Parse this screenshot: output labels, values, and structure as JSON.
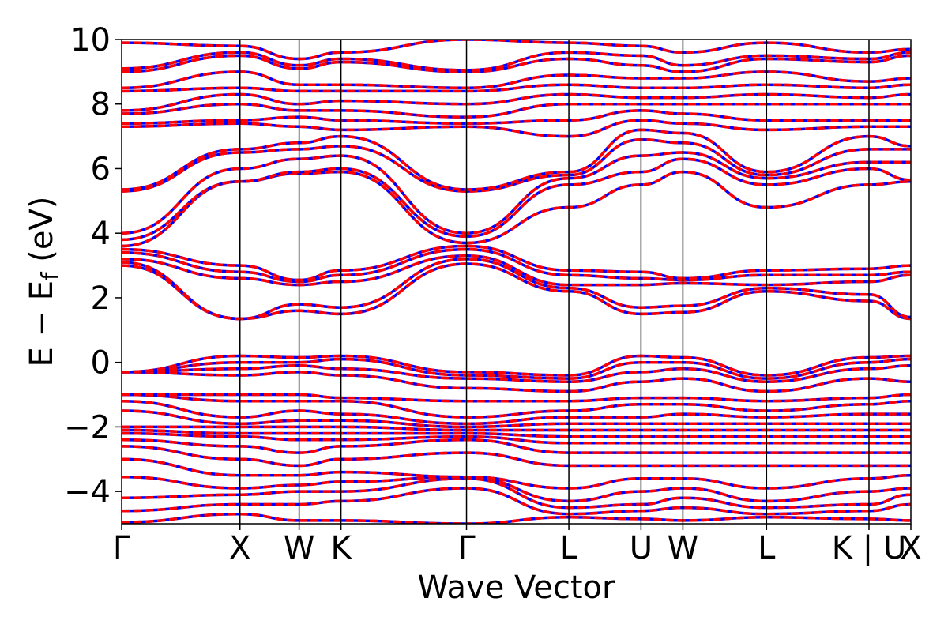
{
  "chart_data": {
    "type": "line",
    "title": "",
    "xlabel": "Wave Vector",
    "ylabel": {
      "main": "E − E",
      "subscript": "f",
      "unit": " (eV)"
    },
    "ylim": [
      -5,
      10
    ],
    "y_ticks": [
      {
        "value": 10,
        "label": "10"
      },
      {
        "value": 8,
        "label": "8"
      },
      {
        "value": 6,
        "label": "6"
      },
      {
        "value": 4,
        "label": "4"
      },
      {
        "value": 2,
        "label": "2"
      },
      {
        "value": 0,
        "label": "0"
      },
      {
        "value": -2,
        "label": "−2"
      },
      {
        "value": -4,
        "label": "−4"
      }
    ],
    "k_path": [
      {
        "label": "Γ",
        "k": 0.0
      },
      {
        "label": "X",
        "k": 1.0
      },
      {
        "label": "W",
        "k": 1.5
      },
      {
        "label": "K",
        "k": 1.854
      },
      {
        "label": "Γ",
        "k": 2.915
      },
      {
        "label": "L",
        "k": 3.78
      },
      {
        "label": "U",
        "k": 4.39
      },
      {
        "label": "W",
        "k": 4.744
      },
      {
        "label": "L",
        "k": 5.451
      },
      {
        "label": "K | U",
        "k": 6.317
      },
      {
        "label": "X",
        "k": 6.671
      }
    ],
    "series": [
      {
        "color": "#0000ff",
        "dashed": false
      },
      {
        "color": "#ff0000",
        "dashed": true
      }
    ],
    "bands": [
      {
        "energies": [
          -4.95,
          -4.7,
          -4.9,
          -4.9,
          -5.0,
          -4.8,
          -4.85,
          -4.9,
          -4.8,
          -4.85,
          -4.9
        ]
      },
      {
        "energies": [
          -4.6,
          -4.4,
          -4.4,
          -4.3,
          -3.9,
          -4.7,
          -4.6,
          -4.5,
          -4.7,
          -4.6,
          -4.4
        ]
      },
      {
        "energies": [
          -4.2,
          -4.1,
          -4.0,
          -4.0,
          -3.6,
          -4.5,
          -4.4,
          -4.2,
          -4.5,
          -4.4,
          -4.1
        ]
      },
      {
        "energies": [
          -3.55,
          -3.9,
          -3.8,
          -3.7,
          -3.55,
          -4.3,
          -4.0,
          -3.9,
          -4.3,
          -4.0,
          -3.9
        ]
      },
      {
        "energies": [
          -3.0,
          -3.5,
          -3.5,
          -3.4,
          -3.55,
          -3.9,
          -3.6,
          -3.6,
          -3.9,
          -3.6,
          -3.5
        ]
      },
      {
        "energies": [
          -2.6,
          -3.0,
          -3.2,
          -3.0,
          -2.8,
          -3.2,
          -3.2,
          -3.2,
          -3.2,
          -3.2,
          -3.2
        ]
      },
      {
        "energies": [
          -2.4,
          -2.6,
          -2.8,
          -2.6,
          -2.4,
          -2.8,
          -2.8,
          -2.8,
          -2.8,
          -2.8,
          -2.8
        ]
      },
      {
        "energies": [
          -2.2,
          -2.3,
          -2.4,
          -2.4,
          -2.3,
          -2.5,
          -2.5,
          -2.5,
          -2.5,
          -2.5,
          -2.5
        ]
      },
      {
        "energies": [
          -2.1,
          -2.2,
          -2.2,
          -2.2,
          -2.2,
          -2.3,
          -2.3,
          -2.3,
          -2.3,
          -2.3,
          -2.3
        ]
      },
      {
        "energies": [
          -2.0,
          -2.0,
          -2.0,
          -2.0,
          -2.1,
          -2.1,
          -2.1,
          -2.1,
          -2.1,
          -2.1,
          -2.1
        ]
      },
      {
        "energies": [
          -1.5,
          -1.9,
          -1.8,
          -1.8,
          -2.0,
          -1.9,
          -1.9,
          -1.9,
          -1.9,
          -1.9,
          -1.9
        ]
      },
      {
        "energies": [
          -1.2,
          -1.7,
          -1.5,
          -1.6,
          -1.9,
          -1.7,
          -1.7,
          -1.6,
          -1.7,
          -1.6,
          -1.6
        ]
      },
      {
        "energies": [
          -1.0,
          -1.2,
          -1.2,
          -1.2,
          -1.7,
          -1.5,
          -1.3,
          -1.3,
          -1.5,
          -1.3,
          -1.2
        ]
      },
      {
        "energies": [
          -1.0,
          -1.0,
          -1.0,
          -1.1,
          -1.2,
          -1.2,
          -1.1,
          -1.1,
          -1.2,
          -1.1,
          -1.0
        ]
      },
      {
        "energies": [
          -0.3,
          -0.4,
          -0.3,
          -0.4,
          -0.8,
          -0.9,
          -0.6,
          -0.5,
          -0.9,
          -0.5,
          -0.6
        ]
      },
      {
        "energies": [
          -0.3,
          -0.2,
          -0.1,
          -0.2,
          -0.5,
          -0.6,
          -0.3,
          -0.2,
          -0.6,
          -0.2,
          -0.1
        ]
      },
      {
        "energies": [
          -0.3,
          0.0,
          0.0,
          0.1,
          -0.4,
          -0.5,
          0.0,
          0.0,
          -0.5,
          0.0,
          0.1
        ]
      },
      {
        "energies": [
          -0.3,
          0.2,
          0.15,
          0.2,
          -0.3,
          -0.4,
          0.2,
          0.15,
          -0.4,
          0.15,
          0.2
        ]
      },
      {
        "energies": [
          3.0,
          1.35,
          1.6,
          1.5,
          3.05,
          2.2,
          1.5,
          1.55,
          2.2,
          1.9,
          1.35
        ]
      },
      {
        "energies": [
          3.1,
          1.35,
          1.8,
          1.7,
          3.2,
          2.3,
          1.7,
          1.75,
          2.3,
          2.1,
          1.4
        ]
      },
      {
        "energies": [
          3.2,
          2.6,
          2.4,
          2.5,
          3.3,
          2.4,
          2.4,
          2.45,
          2.4,
          2.5,
          2.7
        ]
      },
      {
        "energies": [
          3.4,
          2.8,
          2.5,
          2.7,
          3.5,
          2.7,
          2.6,
          2.55,
          2.7,
          2.7,
          2.8
        ]
      },
      {
        "energies": [
          3.5,
          3.0,
          2.55,
          2.85,
          3.6,
          2.85,
          2.8,
          2.6,
          2.85,
          2.9,
          3.0
        ]
      },
      {
        "energies": [
          3.6,
          5.6,
          5.85,
          5.9,
          3.7,
          4.8,
          5.5,
          5.9,
          4.8,
          5.5,
          5.6
        ]
      },
      {
        "energies": [
          3.8,
          5.6,
          5.9,
          6.0,
          3.9,
          5.5,
          5.9,
          6.3,
          5.5,
          6.0,
          5.65
        ]
      },
      {
        "energies": [
          4.0,
          6.0,
          6.3,
          6.4,
          4.0,
          5.7,
          6.4,
          6.5,
          5.7,
          6.2,
          6.2
        ]
      },
      {
        "energies": [
          5.3,
          6.5,
          6.6,
          6.7,
          5.3,
          5.8,
          6.9,
          6.8,
          5.8,
          6.6,
          6.6
        ]
      },
      {
        "energies": [
          5.35,
          6.6,
          6.8,
          7.0,
          5.35,
          5.9,
          7.2,
          7.1,
          5.9,
          7.0,
          6.7
        ]
      },
      {
        "energies": [
          7.3,
          7.4,
          7.3,
          7.2,
          7.3,
          7.0,
          7.5,
          7.4,
          7.2,
          7.3,
          7.3
        ]
      },
      {
        "energies": [
          7.4,
          7.5,
          7.6,
          7.5,
          7.4,
          7.5,
          7.8,
          7.7,
          7.5,
          7.5,
          7.5
        ]
      },
      {
        "energies": [
          7.7,
          8.0,
          7.8,
          7.8,
          7.6,
          8.0,
          8.0,
          8.0,
          8.0,
          8.0,
          8.0
        ]
      },
      {
        "energies": [
          7.8,
          8.3,
          8.0,
          8.1,
          8.0,
          8.3,
          8.2,
          8.2,
          8.3,
          8.2,
          8.3
        ]
      },
      {
        "energies": [
          8.4,
          8.5,
          8.4,
          8.4,
          8.4,
          8.6,
          8.5,
          8.5,
          8.6,
          8.5,
          8.6
        ]
      },
      {
        "energies": [
          8.5,
          9.0,
          8.6,
          8.6,
          8.5,
          8.9,
          8.8,
          8.8,
          9.0,
          8.7,
          8.8
        ]
      },
      {
        "energies": [
          9.0,
          9.5,
          9.1,
          9.3,
          9.0,
          9.4,
          9.2,
          9.0,
          9.4,
          9.3,
          9.5
        ]
      },
      {
        "energies": [
          9.1,
          9.6,
          9.2,
          9.4,
          9.05,
          9.6,
          9.5,
          9.2,
          9.5,
          9.4,
          9.6
        ]
      },
      {
        "energies": [
          9.9,
          9.8,
          9.4,
          9.6,
          10.0,
          9.9,
          9.8,
          9.6,
          9.9,
          9.6,
          9.7
        ]
      }
    ]
  }
}
